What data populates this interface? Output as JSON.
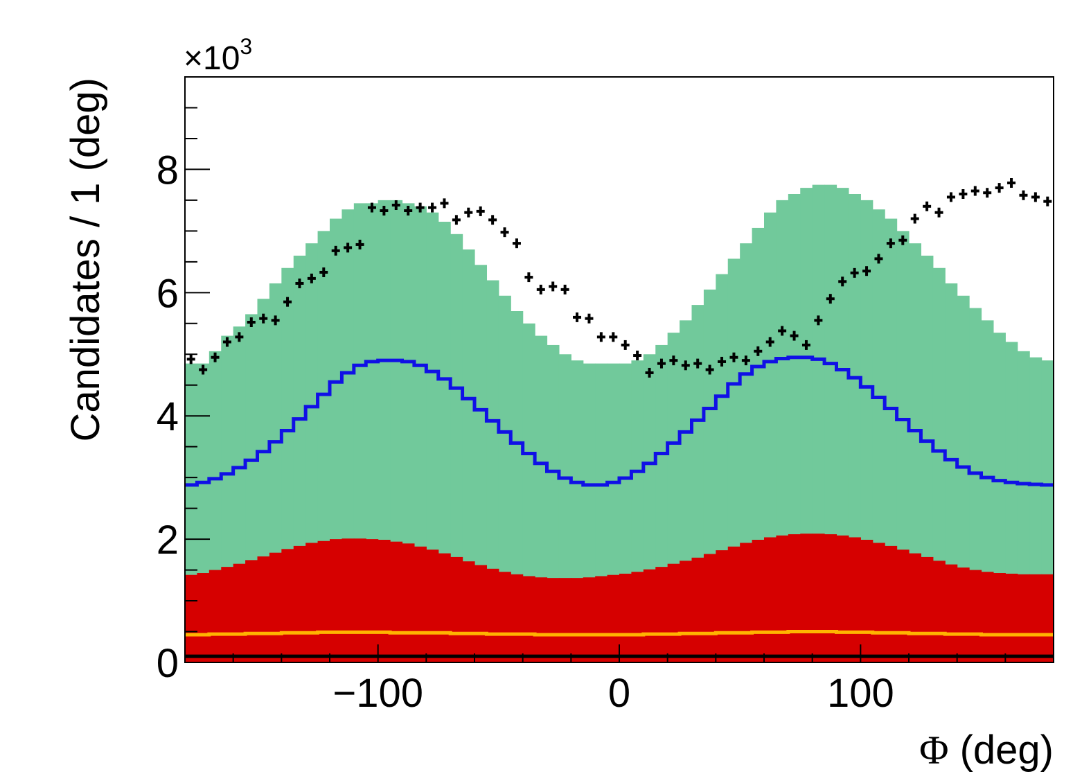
{
  "chart_data": {
    "type": "histogram",
    "xlabel_symbol": "Φ",
    "xlabel_unit": " (deg)",
    "ylabel": "Candidates / 1 (deg)",
    "y_multiplier": "×10",
    "y_multiplier_exp": "3",
    "xlim": [
      -180,
      180
    ],
    "ylim": [
      0,
      9.5
    ],
    "x_ticks": [
      -100,
      0,
      100
    ],
    "x_tick_labels": [
      "−100",
      "0",
      "100"
    ],
    "y_ticks": [
      0,
      2,
      4,
      6,
      8
    ],
    "y_tick_labels": [
      "0",
      "2",
      "4",
      "6",
      "8"
    ],
    "grid": false,
    "legend": "none",
    "nbins": 72,
    "colors": {
      "total": "#71c99b",
      "red": "#d60000",
      "yellow": "#ffb400",
      "blue": "#1010e6",
      "black": "#000000"
    },
    "series": [
      {
        "kind": "filled",
        "color": "#71c99b",
        "values": [
          4.85,
          4.85,
          5.05,
          5.3,
          5.45,
          5.65,
          5.9,
          6.15,
          6.4,
          6.6,
          6.8,
          7.0,
          7.2,
          7.35,
          7.45,
          7.45,
          7.5,
          7.5,
          7.45,
          7.4,
          7.3,
          7.15,
          6.95,
          6.7,
          6.45,
          6.2,
          5.95,
          5.7,
          5.5,
          5.3,
          5.15,
          5.0,
          4.9,
          4.85,
          4.85,
          4.85,
          4.85,
          4.9,
          5.0,
          5.15,
          5.35,
          5.55,
          5.8,
          6.05,
          6.3,
          6.55,
          6.8,
          7.05,
          7.3,
          7.5,
          7.6,
          7.7,
          7.75,
          7.75,
          7.7,
          7.6,
          7.5,
          7.35,
          7.2,
          7.0,
          6.8,
          6.6,
          6.4,
          6.15,
          5.95,
          5.75,
          5.55,
          5.35,
          5.2,
          5.05,
          4.95,
          4.9
        ]
      },
      {
        "kind": "filled",
        "color": "#d60000",
        "values": [
          1.42,
          1.45,
          1.5,
          1.55,
          1.6,
          1.66,
          1.72,
          1.78,
          1.84,
          1.89,
          1.94,
          1.97,
          2.0,
          2.01,
          2.01,
          2.0,
          1.99,
          1.96,
          1.93,
          1.88,
          1.83,
          1.77,
          1.71,
          1.64,
          1.58,
          1.52,
          1.47,
          1.43,
          1.4,
          1.38,
          1.37,
          1.37,
          1.37,
          1.38,
          1.4,
          1.42,
          1.44,
          1.47,
          1.51,
          1.55,
          1.6,
          1.65,
          1.7,
          1.76,
          1.82,
          1.88,
          1.94,
          1.99,
          2.03,
          2.06,
          2.08,
          2.09,
          2.09,
          2.08,
          2.06,
          2.03,
          1.99,
          1.94,
          1.89,
          1.83,
          1.77,
          1.71,
          1.65,
          1.59,
          1.54,
          1.5,
          1.47,
          1.45,
          1.44,
          1.43,
          1.43,
          1.43
        ]
      },
      {
        "kind": "step-line",
        "color": "#ffb400",
        "values": [
          0.45,
          0.45,
          0.46,
          0.46,
          0.46,
          0.47,
          0.47,
          0.47,
          0.48,
          0.48,
          0.48,
          0.49,
          0.49,
          0.49,
          0.49,
          0.49,
          0.49,
          0.48,
          0.48,
          0.48,
          0.48,
          0.48,
          0.47,
          0.47,
          0.47,
          0.46,
          0.46,
          0.46,
          0.46,
          0.45,
          0.45,
          0.45,
          0.45,
          0.45,
          0.45,
          0.45,
          0.45,
          0.45,
          0.46,
          0.46,
          0.46,
          0.47,
          0.47,
          0.47,
          0.48,
          0.48,
          0.48,
          0.49,
          0.49,
          0.49,
          0.5,
          0.5,
          0.5,
          0.5,
          0.49,
          0.49,
          0.49,
          0.48,
          0.48,
          0.48,
          0.47,
          0.47,
          0.47,
          0.46,
          0.46,
          0.46,
          0.45,
          0.45,
          0.45,
          0.45,
          0.45,
          0.45
        ]
      },
      {
        "kind": "step-line",
        "color": "#000000",
        "values": [
          0.1,
          0.1,
          0.1,
          0.1,
          0.1,
          0.1,
          0.1,
          0.1,
          0.1,
          0.1,
          0.1,
          0.1,
          0.1,
          0.1,
          0.1,
          0.1,
          0.1,
          0.1,
          0.1,
          0.1,
          0.1,
          0.1,
          0.1,
          0.1,
          0.1,
          0.1,
          0.1,
          0.1,
          0.1,
          0.1,
          0.1,
          0.1,
          0.1,
          0.1,
          0.1,
          0.1,
          0.1,
          0.1,
          0.1,
          0.1,
          0.1,
          0.1,
          0.1,
          0.1,
          0.1,
          0.1,
          0.1,
          0.1,
          0.1,
          0.1,
          0.1,
          0.1,
          0.1,
          0.1,
          0.1,
          0.1,
          0.1,
          0.1,
          0.1,
          0.1,
          0.1,
          0.1,
          0.1,
          0.1,
          0.1,
          0.1,
          0.1,
          0.1,
          0.1,
          0.1,
          0.1,
          0.1
        ]
      },
      {
        "kind": "step-line",
        "color": "#1010e6",
        "values": [
          2.88,
          2.92,
          2.98,
          3.06,
          3.16,
          3.28,
          3.42,
          3.58,
          3.76,
          3.95,
          4.15,
          4.35,
          4.55,
          4.7,
          4.82,
          4.88,
          4.9,
          4.9,
          4.88,
          4.82,
          4.72,
          4.6,
          4.45,
          4.28,
          4.1,
          3.92,
          3.74,
          3.56,
          3.39,
          3.23,
          3.1,
          2.99,
          2.92,
          2.88,
          2.88,
          2.92,
          2.99,
          3.1,
          3.23,
          3.39,
          3.56,
          3.74,
          3.93,
          4.12,
          4.32,
          4.52,
          4.68,
          4.8,
          4.88,
          4.93,
          4.95,
          4.95,
          4.92,
          4.85,
          4.75,
          4.62,
          4.47,
          4.3,
          4.12,
          3.94,
          3.76,
          3.59,
          3.43,
          3.29,
          3.17,
          3.07,
          3.0,
          2.95,
          2.92,
          2.9,
          2.89,
          2.88
        ]
      },
      {
        "kind": "points",
        "color": "#000000",
        "values": [
          4.92,
          4.75,
          4.95,
          5.2,
          5.28,
          5.52,
          5.58,
          5.55,
          5.85,
          6.15,
          6.23,
          6.33,
          6.68,
          6.73,
          6.78,
          7.38,
          7.33,
          7.42,
          7.33,
          7.38,
          7.38,
          7.45,
          7.18,
          7.3,
          7.32,
          7.18,
          6.98,
          6.8,
          6.25,
          6.05,
          6.1,
          6.05,
          5.6,
          5.58,
          5.28,
          5.28,
          5.15,
          4.98,
          4.7,
          4.85,
          4.9,
          4.82,
          4.85,
          4.75,
          4.88,
          4.95,
          4.9,
          5.05,
          5.2,
          5.38,
          5.3,
          5.15,
          5.55,
          5.9,
          6.18,
          6.32,
          6.35,
          6.55,
          6.8,
          6.85,
          7.2,
          7.4,
          7.3,
          7.55,
          7.6,
          7.65,
          7.62,
          7.7,
          7.78,
          7.58,
          7.55,
          7.48
        ]
      }
    ]
  }
}
